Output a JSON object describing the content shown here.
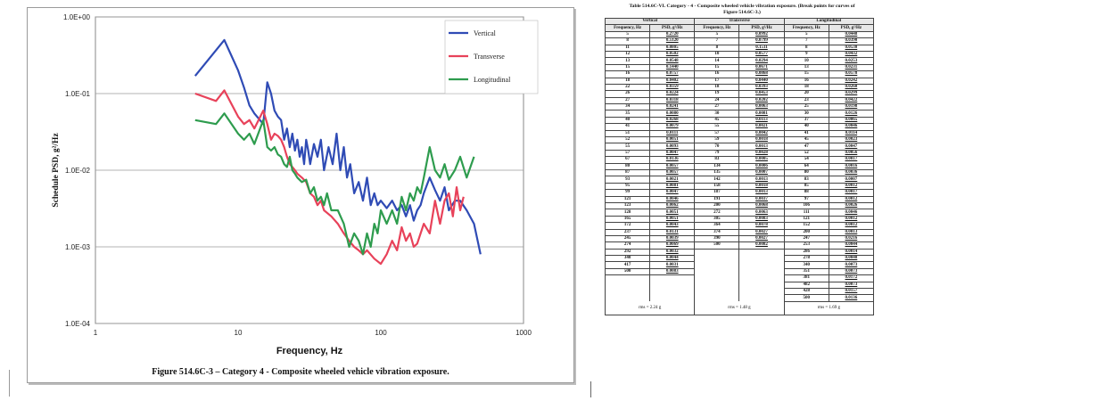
{
  "chart_data": {
    "type": "line",
    "title": "",
    "xlabel": "Frequency, Hz",
    "ylabel": "Schedule PSD, g²/Hz",
    "xscale": "log",
    "yscale": "log",
    "xlim": [
      1,
      1000
    ],
    "ylim": [
      0.0001,
      1
    ],
    "x_ticks": [
      "1",
      "10",
      "100",
      "1000"
    ],
    "y_ticks": [
      "1.0E+00",
      "1.0E-01",
      "1.0E-02",
      "1.0E-03",
      "1.0E-04"
    ],
    "grid": "horizontal",
    "legend_position": "top-right",
    "series": [
      {
        "name": "Vertical",
        "color": "#2f4bb5",
        "x": [
          5,
          8,
          10,
          11,
          12,
          13,
          15,
          16,
          17,
          18,
          19,
          20,
          21,
          22,
          23,
          24,
          25,
          26,
          27,
          28,
          29,
          30,
          31,
          32,
          34,
          36,
          38,
          40,
          43,
          46,
          49,
          52,
          55,
          58,
          61,
          65,
          70,
          75,
          80,
          85,
          90,
          95,
          100,
          110,
          120,
          130,
          140,
          150,
          160,
          170,
          180,
          190,
          200,
          220,
          240,
          260,
          280,
          300,
          330,
          360,
          400,
          450,
          500
        ],
        "y": [
          0.17,
          0.5,
          0.2,
          0.12,
          0.07,
          0.055,
          0.04,
          0.14,
          0.1,
          0.06,
          0.05,
          0.045,
          0.025,
          0.035,
          0.02,
          0.03,
          0.018,
          0.025,
          0.015,
          0.02,
          0.012,
          0.025,
          0.018,
          0.012,
          0.022,
          0.015,
          0.025,
          0.01,
          0.02,
          0.012,
          0.03,
          0.01,
          0.02,
          0.008,
          0.012,
          0.005,
          0.007,
          0.004,
          0.008,
          0.0035,
          0.005,
          0.0035,
          0.004,
          0.0032,
          0.004,
          0.003,
          0.0035,
          0.0025,
          0.0035,
          0.0022,
          0.003,
          0.0035,
          0.005,
          0.008,
          0.0055,
          0.004,
          0.006,
          0.003,
          0.004,
          0.004,
          0.003,
          0.002,
          0.0008
        ]
      },
      {
        "name": "Transverse",
        "color": "#e8425a",
        "x": [
          5,
          7,
          8,
          10,
          11,
          12,
          13,
          15,
          16,
          17,
          18,
          19,
          20,
          21,
          22,
          23,
          24,
          25,
          26,
          28,
          30,
          32,
          34,
          36,
          38,
          40,
          45,
          50,
          55,
          60,
          65,
          70,
          75,
          80,
          90,
          100,
          110,
          120,
          130,
          140,
          150,
          160,
          170,
          180,
          200,
          220,
          240,
          260,
          280,
          300,
          320,
          340,
          360,
          380
        ],
        "y": [
          0.1,
          0.08,
          0.11,
          0.05,
          0.04,
          0.045,
          0.035,
          0.06,
          0.04,
          0.025,
          0.03,
          0.028,
          0.025,
          0.02,
          0.015,
          0.012,
          0.011,
          0.01,
          0.009,
          0.008,
          0.007,
          0.005,
          0.0045,
          0.0035,
          0.004,
          0.003,
          0.0025,
          0.002,
          0.0015,
          0.0012,
          0.001,
          0.0009,
          0.0008,
          0.0009,
          0.0007,
          0.0006,
          0.0008,
          0.0012,
          0.0009,
          0.0018,
          0.0012,
          0.0015,
          0.001,
          0.0011,
          0.002,
          0.0015,
          0.004,
          0.002,
          0.004,
          0.005,
          0.0025,
          0.006,
          0.003,
          0.0045
        ]
      },
      {
        "name": "Longitudinal",
        "color": "#2e9c4e",
        "x": [
          5,
          7,
          8,
          10,
          11,
          12,
          13,
          15,
          16,
          17,
          18,
          19,
          20,
          21,
          22,
          23,
          24,
          25,
          26,
          28,
          30,
          32,
          34,
          36,
          38,
          40,
          42,
          45,
          50,
          55,
          60,
          65,
          70,
          75,
          80,
          85,
          90,
          95,
          100,
          110,
          120,
          130,
          140,
          150,
          160,
          170,
          180,
          190,
          200,
          220,
          240,
          260,
          280,
          300,
          330,
          360,
          400,
          450
        ],
        "y": [
          0.045,
          0.04,
          0.055,
          0.03,
          0.025,
          0.03,
          0.022,
          0.045,
          0.02,
          0.018,
          0.02,
          0.016,
          0.015,
          0.012,
          0.011,
          0.015,
          0.01,
          0.009,
          0.008,
          0.007,
          0.0075,
          0.005,
          0.006,
          0.004,
          0.0045,
          0.0035,
          0.005,
          0.003,
          0.003,
          0.002,
          0.001,
          0.0015,
          0.0012,
          0.0008,
          0.0015,
          0.001,
          0.002,
          0.0015,
          0.003,
          0.002,
          0.003,
          0.002,
          0.0045,
          0.003,
          0.005,
          0.004,
          0.006,
          0.005,
          0.008,
          0.02,
          0.01,
          0.008,
          0.012,
          0.0075,
          0.01,
          0.015,
          0.008,
          0.015
        ]
      }
    ]
  },
  "figure": {
    "caption": "Figure 514.6C-3 – Category 4 - Composite wheeled vehicle vibration exposure."
  },
  "table": {
    "title_line1": "Table 514.6C-VI.  Category - 4 - Composite wheeled vehicle vibration exposure. (Break points for curves of",
    "title_line2": "Figure 514.6C-3.)",
    "groups": [
      "Vertical",
      "Transverse",
      "Longitudinal"
    ],
    "col_freq": "Frequency, Hz",
    "col_psd": "PSD, g²/Hz",
    "rows": [
      [
        "5",
        "0.2720",
        "5",
        "0.0992",
        "5",
        "0.0448"
      ],
      [
        "8",
        "0.5120",
        "7",
        "0.0799",
        "7",
        "0.0390"
      ],
      [
        "11",
        "0.0805",
        "8",
        "0.1511",
        "8",
        "0.0530"
      ],
      [
        "12",
        "0.0502",
        "10",
        "0.0577",
        "9",
        "0.0432"
      ],
      [
        "13",
        "0.0548",
        "14",
        "0.0294",
        "10",
        "0.0253"
      ],
      [
        "15",
        "0.1440",
        "15",
        "0.0671",
        "13",
        "0.0231"
      ],
      [
        "16",
        "0.0757",
        "16",
        "0.0868",
        "15",
        "0.0578"
      ],
      [
        "18",
        "0.0402",
        "17",
        "0.0440",
        "16",
        "0.0242"
      ],
      [
        "22",
        "0.0359",
        "18",
        "0.0393",
        "18",
        "0.0260"
      ],
      [
        "26",
        "0.0224",
        "19",
        "0.0453",
        "20",
        "0.0299"
      ],
      [
        "27",
        "0.0318",
        "24",
        "0.0202",
        "23",
        "0.0422"
      ],
      [
        "34",
        "0.0241",
        "27",
        "0.0063",
        "25",
        "0.0198"
      ],
      [
        "35",
        "0.0080",
        "30",
        "0.0081",
        "30",
        "0.0126"
      ],
      [
        "40",
        "0.0268",
        "45",
        "0.0113",
        "37",
        "0.0065"
      ],
      [
        "41",
        "0.0079",
        "55",
        "0.0021",
        "40",
        "0.0046"
      ],
      [
        "51",
        "0.0111",
        "57",
        "0.0042",
        "41",
        "0.0114"
      ],
      [
        "52",
        "0.0051",
        "59",
        "0.0018",
        "45",
        "0.0023"
      ],
      [
        "55",
        "0.0093",
        "70",
        "0.0013",
        "47",
        "0.0047"
      ],
      [
        "57",
        "0.0047",
        "79",
        "0.0028",
        "52",
        "0.0056"
      ],
      [
        "67",
        "0.0136",
        "83",
        "0.0005",
        "54",
        "0.0017"
      ],
      [
        "80",
        "0.0057",
        "134",
        "0.0006",
        "64",
        "0.0016"
      ],
      [
        "87",
        "0.0057",
        "135",
        "0.0007",
        "80",
        "0.0036"
      ],
      [
        "93",
        "0.0021",
        "142",
        "0.0013",
        "83",
        "0.0007"
      ],
      [
        "95",
        "0.0081",
        "158",
        "0.0018",
        "85",
        "0.0012"
      ],
      [
        "99",
        "0.0047",
        "187",
        "0.0013",
        "88",
        "0.0017"
      ],
      [
        "121",
        "0.0046",
        "191",
        "0.0037",
        "97",
        "0.0012"
      ],
      [
        "123",
        "0.0062",
        "200",
        "0.0068",
        "106",
        "0.0026"
      ],
      [
        "128",
        "0.0051",
        "272",
        "0.0063",
        "111",
        "0.0046"
      ],
      [
        "165",
        "0.0051",
        "305",
        "0.0083",
        "121",
        "0.0012"
      ],
      [
        "172",
        "0.0043",
        "364",
        "0.0078",
        "152",
        "0.0012"
      ],
      [
        "237",
        "0.0131",
        "374",
        "0.0027",
        "200",
        "0.0013"
      ],
      [
        "245",
        "0.0039",
        "390",
        "0.0027",
        "247",
        "0.0216"
      ],
      [
        "274",
        "0.0069",
        "500",
        "0.0082",
        "253",
        "0.0044"
      ],
      [
        "292",
        "0.0032",
        "",
        "",
        "286",
        "0.0014"
      ],
      [
        "340",
        "0.0044",
        "",
        "",
        "278",
        "0.0040"
      ],
      [
        "417",
        "0.0031",
        "",
        "",
        "340",
        "0.0073"
      ],
      [
        "500",
        "0.0083",
        "",
        "",
        "351",
        "0.0073"
      ],
      [
        "",
        "",
        "",
        "",
        "381",
        "0.0172"
      ],
      [
        "",
        "",
        "",
        "",
        "482",
        "0.0073"
      ],
      [
        "",
        "",
        "",
        "",
        "428",
        "0.0157"
      ],
      [
        "",
        "",
        "",
        "",
        "500",
        "0.0136"
      ]
    ],
    "rms_vertical": "rms = 2.24 g",
    "rms_transverse": "rms = 1.48 g",
    "rms_longitudinal": "rms = 1.69 g"
  }
}
